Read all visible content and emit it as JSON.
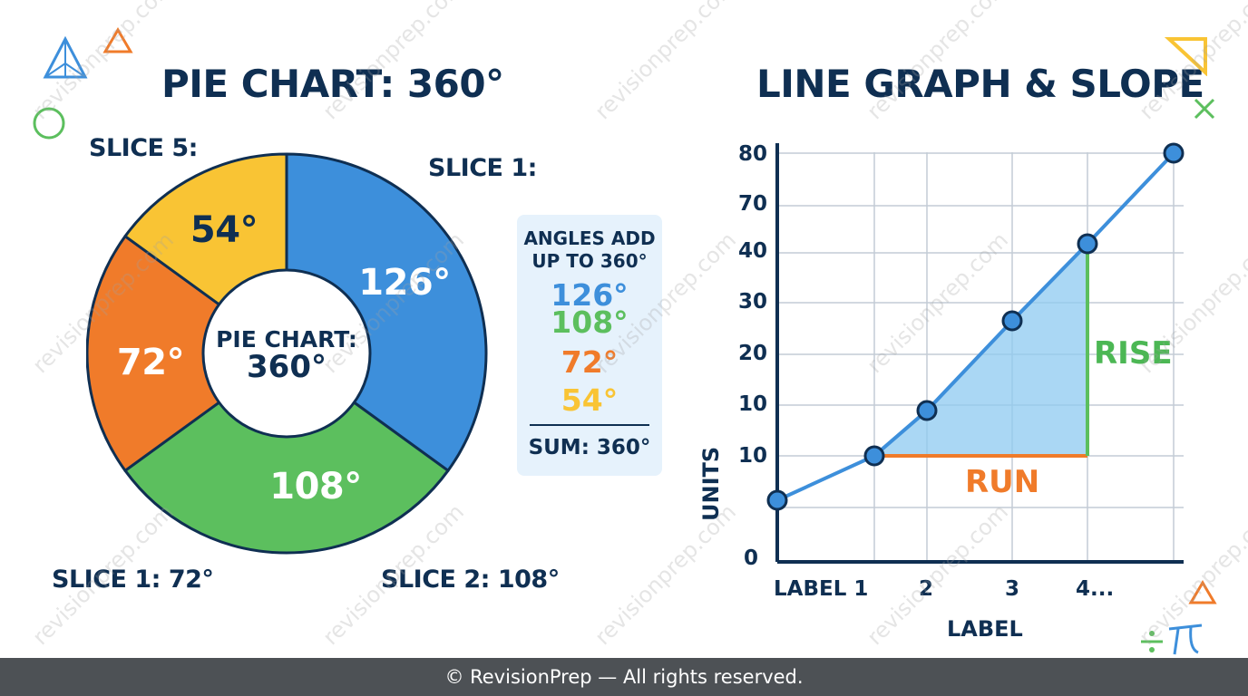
{
  "pie_title": "PIE CHART: 360°",
  "line_title": "LINE GRAPH & SLOPE",
  "chart_data": [
    {
      "type": "pie",
      "title": "PIE CHART: 360°",
      "center_label": [
        "PIE CHART:",
        "360°"
      ],
      "unit": "°",
      "slices": [
        {
          "value": 126,
          "label": "126°",
          "color": "#3d8fdb"
        },
        {
          "value": 108,
          "label": "108°",
          "color": "#5cbf5e"
        },
        {
          "value": 72,
          "label": "72°",
          "color": "#f07b2a"
        },
        {
          "value": 54,
          "label": "54°",
          "color": "#f9c434"
        }
      ],
      "outer_labels": [
        "SLICE 5:",
        "SLICE 1:",
        "SLICE 1: 72°",
        "SLICE 2: 108°"
      ],
      "summary_box": {
        "heading": [
          "ANGLES ADD",
          "UP TO 360°"
        ],
        "values": [
          "126°",
          "108°",
          "72°",
          "54°"
        ],
        "total": "SUM: 360°"
      }
    },
    {
      "type": "line",
      "title": "LINE GRAPH & SLOPE",
      "xlabel": "LABEL",
      "ylabel": "UNITS",
      "y_tick_labels": [
        "80",
        "70",
        "40",
        "30",
        "20",
        "10",
        "10",
        "0"
      ],
      "x_tick_labels": [
        "LABEL 1",
        "2",
        "3",
        "4..."
      ],
      "series": [
        {
          "x": [
            0,
            1,
            2,
            3,
            4,
            5
          ],
          "y": [
            0,
            10,
            15,
            27,
            42,
            80
          ],
          "color": "#3d8fdb"
        }
      ],
      "annotations": {
        "rise": "RISE",
        "run": "RUN"
      },
      "grid": true
    }
  ],
  "watermark_text": "revisionprep.com",
  "footer_text": "© RevisionPrep — All rights reserved."
}
